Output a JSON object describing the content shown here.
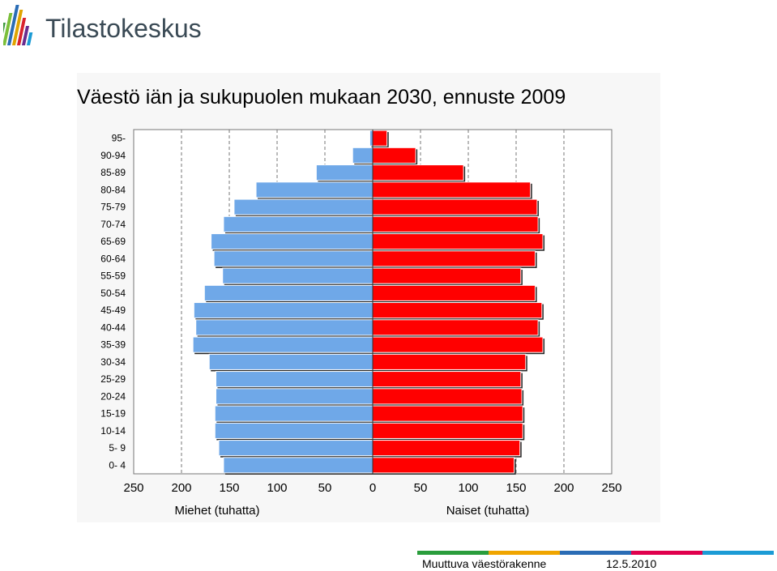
{
  "brand": {
    "name": "Tilastokeskus",
    "stripe_colors": [
      "#3d9a3c",
      "#7bbf3a",
      "#2a6cb5",
      "#e0a400",
      "#d9232d",
      "#6a2b8e",
      "#1c9bd5"
    ]
  },
  "footer": {
    "title": "Muuttuva väestörakenne",
    "date": "12.5.2010",
    "rule_colors": [
      "#2a9d3c",
      "#f0a500",
      "#2a6cb5",
      "#e0004d",
      "#1c9bd5"
    ]
  },
  "chart_data": {
    "type": "bar",
    "orientation": "horizontal",
    "title": "Väestö iän ja sukupuolen mukaan 2030, ennuste 2009",
    "categories": [
      "95-",
      "90-94",
      "85-89",
      "80-84",
      "75-79",
      "70-74",
      "65-69",
      "60-64",
      "55-59",
      "50-54",
      "45-49",
      "40-44",
      "35-39",
      "30-34",
      "25-29",
      "20-24",
      "15-19",
      "10-14",
      "5- 9",
      "0- 4"
    ],
    "series": [
      {
        "name": "Miehet (tuhatta)",
        "side": "left",
        "color": "#6fa8e8",
        "values": [
          3,
          21,
          59,
          122,
          145,
          156,
          169,
          166,
          157,
          176,
          187,
          185,
          188,
          171,
          164,
          164,
          165,
          165,
          161,
          156
        ]
      },
      {
        "name": "Naiset (tuhatta)",
        "side": "right",
        "color": "#ff0000",
        "values": [
          15,
          45,
          95,
          165,
          172,
          173,
          178,
          170,
          155,
          170,
          177,
          173,
          178,
          160,
          155,
          156,
          157,
          157,
          154,
          148
        ]
      }
    ],
    "x_ticks": [
      "250",
      "200",
      "150",
      "100",
      "50",
      "0",
      "50",
      "100",
      "150",
      "200",
      "250"
    ],
    "xlim": [
      -250,
      250
    ],
    "grid": "vertical dashed lines at every 50",
    "xlabel_left": "Miehet (tuhatta)",
    "xlabel_right": "Naiset (tuhatta)"
  }
}
